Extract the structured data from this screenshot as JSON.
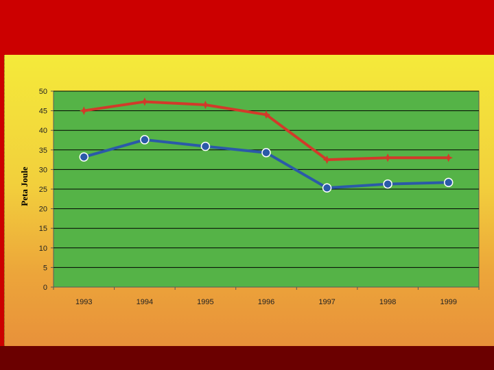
{
  "chart_data": {
    "type": "line",
    "ylabel": "Peta Joule",
    "xlabel": "",
    "title": "",
    "categories": [
      "1993",
      "1994",
      "1995",
      "1996",
      "1997",
      "1998",
      "1999"
    ],
    "ylim": [
      0,
      50
    ],
    "yticks": [
      "0",
      "5",
      "10",
      "15",
      "20",
      "25",
      "30",
      "35",
      "40",
      "45",
      "50"
    ],
    "grid": true,
    "legend": "none",
    "series": [
      {
        "color": "#d23a2a",
        "marker": "star",
        "values": [
          45.0,
          47.3,
          46.5,
          44.0,
          32.5,
          33.0,
          33.0
        ]
      },
      {
        "color": "#2b5aa8",
        "marker": "circle",
        "values": [
          33.2,
          37.6,
          35.9,
          34.3,
          25.3,
          26.3,
          26.7
        ]
      }
    ],
    "plot_background": "#55b347"
  }
}
